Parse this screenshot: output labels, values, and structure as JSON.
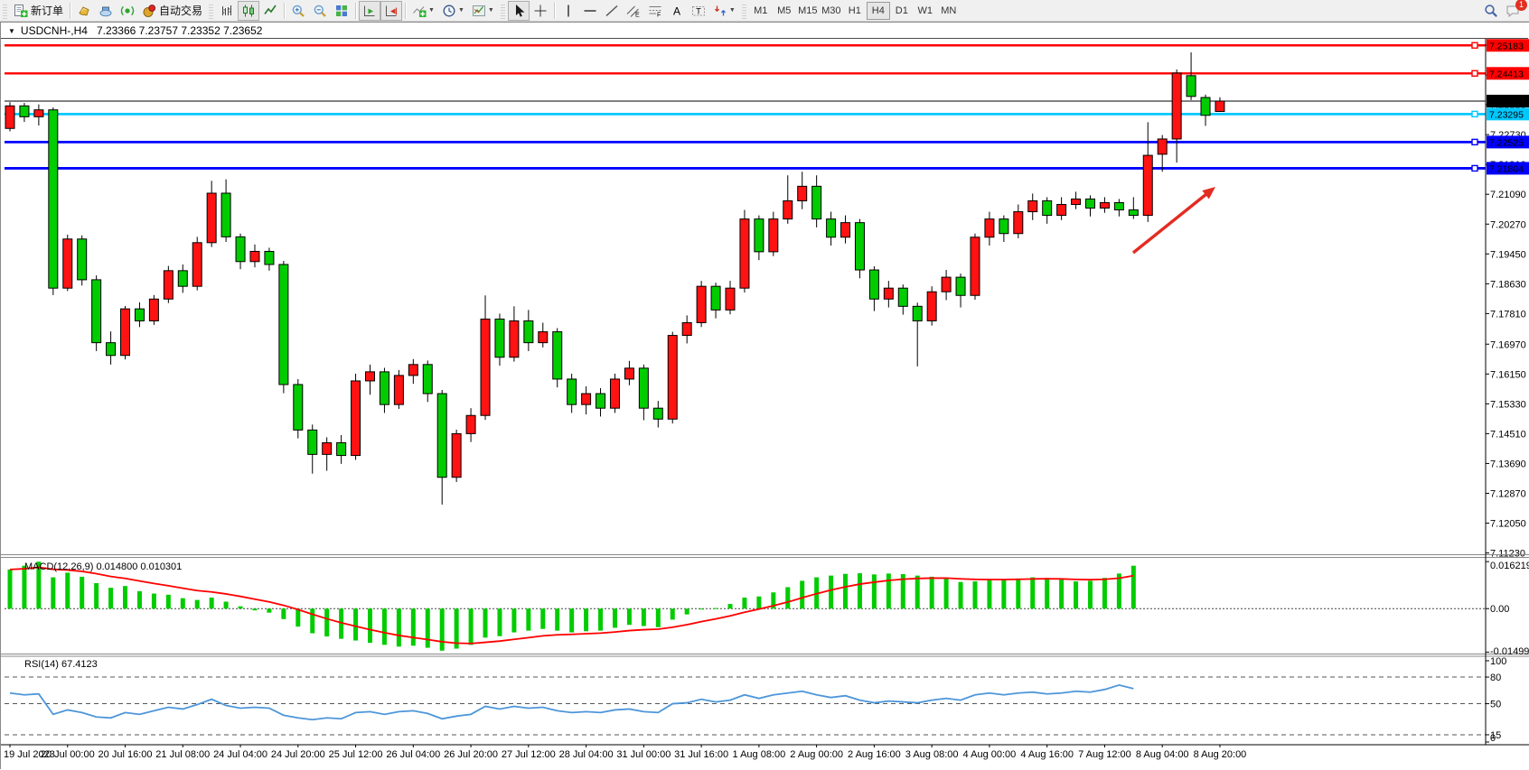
{
  "toolbar": {
    "new_order_label": "新订单",
    "autotrading_label": "自动交易",
    "notification_count": "1",
    "timeframes": [
      "M1",
      "M5",
      "M15",
      "M30",
      "H1",
      "H4",
      "D1",
      "W1",
      "MN"
    ],
    "active_timeframe": "H4",
    "items": [
      {
        "t": "grip"
      },
      {
        "t": "btn",
        "name": "new-order",
        "icon": "new-order",
        "label_key": "new_order_label"
      },
      {
        "t": "sep"
      },
      {
        "t": "btn",
        "name": "market",
        "icon": "market"
      },
      {
        "t": "btn",
        "name": "virtual-hosting",
        "icon": "hosting"
      },
      {
        "t": "btn",
        "name": "signals",
        "icon": "signals"
      },
      {
        "t": "btn",
        "name": "autotrading",
        "icon": "autotrading",
        "label_key": "autotrading_label"
      },
      {
        "t": "grip"
      },
      {
        "t": "btn",
        "name": "bar-chart",
        "icon": "bar-chart"
      },
      {
        "t": "btn",
        "name": "candlestick-chart",
        "icon": "candlestick",
        "active": true
      },
      {
        "t": "btn",
        "name": "line-chart",
        "icon": "line-chart"
      },
      {
        "t": "sep"
      },
      {
        "t": "btn",
        "name": "zoom-in",
        "icon": "zoom-in"
      },
      {
        "t": "btn",
        "name": "zoom-out",
        "icon": "zoom-out"
      },
      {
        "t": "btn",
        "name": "tile-windows",
        "icon": "tile"
      },
      {
        "t": "sep"
      },
      {
        "t": "btn",
        "name": "auto-scroll",
        "icon": "auto-scroll",
        "active": true
      },
      {
        "t": "btn",
        "name": "chart-shift",
        "icon": "chart-shift",
        "active": true
      },
      {
        "t": "sep"
      },
      {
        "t": "btn",
        "name": "indicators",
        "icon": "indicators",
        "dd": true
      },
      {
        "t": "btn",
        "name": "periods",
        "icon": "periods",
        "dd": true
      },
      {
        "t": "btn",
        "name": "templates",
        "icon": "templates",
        "dd": true
      },
      {
        "t": "grip"
      },
      {
        "t": "btn",
        "name": "cursor",
        "icon": "cursor",
        "active": true
      },
      {
        "t": "btn",
        "name": "crosshair",
        "icon": "crosshair"
      },
      {
        "t": "sep"
      },
      {
        "t": "btn",
        "name": "vertical-line",
        "icon": "vline"
      },
      {
        "t": "btn",
        "name": "horizontal-line",
        "icon": "hline"
      },
      {
        "t": "btn",
        "name": "trendline",
        "icon": "tline"
      },
      {
        "t": "btn",
        "name": "equidistant-channel",
        "icon": "channel"
      },
      {
        "t": "btn",
        "name": "fibonacci",
        "icon": "fibo"
      },
      {
        "t": "btn",
        "name": "text",
        "icon": "text-a"
      },
      {
        "t": "btn",
        "name": "text-label",
        "icon": "text-label"
      },
      {
        "t": "btn",
        "name": "arrows",
        "icon": "arrows-tool",
        "dd": true
      },
      {
        "t": "grip"
      }
    ]
  },
  "window": {
    "collapse_arrow": "▼",
    "title_symbol": "USDCNH-,H4",
    "title_ohlc": "7.23366 7.23757 7.23352 7.23652"
  },
  "chart_data": [
    {
      "type": "candlestick",
      "symbol": "USDCNH",
      "timeframe": "H4",
      "up_color": "#fe1212",
      "down_color": "#00cc00",
      "price_range": [
        7.1117,
        7.2576
      ],
      "y_ticks": [
        "7.25190",
        "7.24370",
        "7.23550",
        "7.22730",
        "7.21910",
        "7.21090",
        "7.20270",
        "7.19450",
        "7.18630",
        "7.17810",
        "7.16970",
        "7.16150",
        "7.15330",
        "7.14510",
        "7.13690",
        "7.12870",
        "7.12050",
        "7.11230"
      ],
      "x_labels": [
        "19 Jul 2023",
        "20 Jul 00:00",
        "20 Jul 16:00",
        "21 Jul 08:00",
        "24 Jul 04:00",
        "24 Jul 20:00",
        "25 Jul 12:00",
        "26 Jul 04:00",
        "26 Jul 20:00",
        "27 Jul 12:00",
        "28 Jul 04:00",
        "31 Jul 00:00",
        "31 Jul 16:00",
        "1 Aug 08:00",
        "2 Aug 00:00",
        "2 Aug 16:00",
        "3 Aug 08:00",
        "4 Aug 00:00",
        "4 Aug 16:00",
        "7 Aug 12:00",
        "8 Aug 04:00",
        "8 Aug 20:00"
      ],
      "candles_per_label": 4,
      "open": [
        7.229,
        7.2352,
        7.2322,
        7.2341,
        7.1851,
        7.1986,
        7.1874,
        7.1701,
        7.1666,
        7.1794,
        7.1761,
        7.1821,
        7.1899,
        7.1856,
        7.1976,
        7.2112,
        7.1992,
        7.1924,
        7.1952,
        7.1916,
        7.1586,
        7.1461,
        7.1394,
        7.1426,
        7.1391,
        7.1596,
        7.1621,
        7.1531,
        7.1611,
        7.1641,
        7.1561,
        7.1331,
        7.1451,
        7.1501,
        7.1766,
        7.1661,
        7.1761,
        7.1701,
        7.1731,
        7.1601,
        7.1531,
        7.1561,
        7.1521,
        7.1601,
        7.1631,
        7.1521,
        7.1491,
        7.1721,
        7.1756,
        7.1856,
        7.1791,
        7.1851,
        7.2041,
        7.1951,
        7.2041,
        7.2091,
        7.2131,
        7.2041,
        7.1991,
        7.2031,
        7.1901,
        7.1821,
        7.1851,
        7.1801,
        7.1761,
        7.1841,
        7.1881,
        7.1831,
        7.1991,
        7.2041,
        7.2001,
        7.2061,
        7.2091,
        7.2051,
        7.2081,
        7.2096,
        7.2071,
        7.2086,
        7.2066,
        7.2051,
        7.2219,
        7.2261,
        7.2435,
        7.2375,
        7.23366
      ],
      "high": [
        7.2362,
        7.236,
        7.2356,
        7.2348,
        7.1998,
        7.1996,
        7.1886,
        7.1732,
        7.1802,
        7.1812,
        7.1832,
        7.1912,
        7.1916,
        7.1992,
        7.2146,
        7.215,
        7.2001,
        7.1971,
        7.1962,
        7.1926,
        7.1601,
        7.1476,
        7.1441,
        7.1447,
        7.1616,
        7.1641,
        7.1632,
        7.1626,
        7.1656,
        7.1652,
        7.1571,
        7.1462,
        7.1521,
        7.1831,
        7.1781,
        7.1801,
        7.1791,
        7.1756,
        7.1741,
        7.1616,
        7.1581,
        7.1576,
        7.1616,
        7.1651,
        7.1641,
        7.1541,
        7.1731,
        7.1776,
        7.1871,
        7.1866,
        7.1871,
        7.2066,
        7.2051,
        7.2061,
        7.2161,
        7.2171,
        7.2161,
        7.2061,
        7.2051,
        7.2041,
        7.1911,
        7.1871,
        7.1861,
        7.1811,
        7.1856,
        7.1901,
        7.1891,
        7.2001,
        7.2061,
        7.2051,
        7.2081,
        7.2111,
        7.2101,
        7.2101,
        7.2116,
        7.2106,
        7.2101,
        7.2096,
        7.2101,
        7.2307,
        7.2272,
        7.2452,
        7.2499,
        7.2383,
        7.23757
      ],
      "low": [
        7.2282,
        7.2308,
        7.2298,
        7.1832,
        7.1843,
        7.1858,
        7.1678,
        7.1641,
        7.1655,
        7.1744,
        7.175,
        7.181,
        7.1838,
        7.1845,
        7.1964,
        7.1978,
        7.1903,
        7.1908,
        7.1899,
        7.1562,
        7.1438,
        7.1341,
        7.1349,
        7.1368,
        7.1379,
        7.1558,
        7.1508,
        7.1519,
        7.1588,
        7.1538,
        7.1256,
        7.1318,
        7.1428,
        7.1489,
        7.1638,
        7.1649,
        7.1678,
        7.1688,
        7.1578,
        7.1508,
        7.1504,
        7.1498,
        7.1508,
        7.1584,
        7.1488,
        7.1468,
        7.1479,
        7.1699,
        7.1744,
        7.1768,
        7.1779,
        7.1839,
        7.1928,
        7.1939,
        7.2028,
        7.2068,
        7.2018,
        7.1968,
        7.1974,
        7.1878,
        7.1788,
        7.1798,
        7.1778,
        7.1636,
        7.1748,
        7.1818,
        7.1798,
        7.1819,
        7.1968,
        7.1978,
        7.1988,
        7.2038,
        7.2028,
        7.2038,
        7.2068,
        7.2048,
        7.2058,
        7.2048,
        7.2041,
        7.2033,
        7.2171,
        7.2196,
        7.2368,
        7.2297,
        7.23352
      ],
      "close": [
        7.2352,
        7.2322,
        7.2341,
        7.1851,
        7.1986,
        7.1874,
        7.1701,
        7.1666,
        7.1794,
        7.1761,
        7.1821,
        7.1899,
        7.1856,
        7.1976,
        7.2112,
        7.1992,
        7.1924,
        7.1952,
        7.1916,
        7.1586,
        7.1461,
        7.1394,
        7.1426,
        7.1391,
        7.1596,
        7.1621,
        7.1531,
        7.1611,
        7.1641,
        7.1561,
        7.1331,
        7.1451,
        7.1501,
        7.1766,
        7.1661,
        7.1761,
        7.1701,
        7.1731,
        7.1601,
        7.1531,
        7.1561,
        7.1521,
        7.1601,
        7.1631,
        7.1521,
        7.1491,
        7.1721,
        7.1756,
        7.1856,
        7.1791,
        7.1851,
        7.2041,
        7.1951,
        7.2041,
        7.2091,
        7.2131,
        7.2041,
        7.1991,
        7.2031,
        7.1901,
        7.1821,
        7.1851,
        7.1801,
        7.1761,
        7.1841,
        7.1881,
        7.1831,
        7.1991,
        7.2041,
        7.2001,
        7.2061,
        7.2091,
        7.2051,
        7.2081,
        7.2096,
        7.2071,
        7.2086,
        7.2066,
        7.2051,
        7.2216,
        7.2261,
        7.2442,
        7.2378,
        7.2326,
        7.23652
      ],
      "levels": [
        {
          "price": 7.25183,
          "label": "7.25183",
          "color": "#ff0000",
          "width": 2.4
        },
        {
          "price": 7.24413,
          "label": "7.24413",
          "color": "#ff0000",
          "width": 2.4
        },
        {
          "price": 7.23295,
          "label": "7.23295",
          "color": "#00c8ff",
          "width": 2.8
        },
        {
          "price": 7.22525,
          "label": "7.22525",
          "color": "#0000ff",
          "width": 2.8
        },
        {
          "price": 7.21804,
          "label": "7.21804",
          "color": "#0000ff",
          "width": 2.8
        }
      ],
      "current_price": {
        "price": 7.23652,
        "label": "7.23652",
        "color": "#000000"
      },
      "annotation_arrow": {
        "from": [
          1253,
          279
        ],
        "to": [
          1344,
          206
        ],
        "color": "#e32c22"
      },
      "shift_marker_x": 1277
    },
    {
      "type": "bar",
      "name": "MACD",
      "params": "(12,26,9)",
      "label": "MACD(12,26,9) 0.014800 0.010301",
      "main_value": "0.014800",
      "signal_value": "0.010301",
      "bar_color": "#00cc00",
      "signal_color": "#ff0000",
      "range": [
        -0.0155,
        0.0172
      ],
      "y_ticks": [
        {
          "v": 0.016219,
          "label": "0.016219"
        },
        {
          "v": 0,
          "label": "0.00"
        },
        {
          "v": -0.014998,
          "label": "-0.014998"
        }
      ],
      "values": [
        0.0135,
        0.0148,
        0.0162,
        0.0108,
        0.0124,
        0.011,
        0.0088,
        0.0072,
        0.0078,
        0.006,
        0.0052,
        0.0048,
        0.0036,
        0.003,
        0.0038,
        0.0024,
        0.0008,
        -0.0006,
        -0.0014,
        -0.0036,
        -0.0062,
        -0.0085,
        -0.0096,
        -0.0104,
        -0.011,
        -0.0118,
        -0.0125,
        -0.0131,
        -0.0128,
        -0.0135,
        -0.0145,
        -0.0138,
        -0.0125,
        -0.01,
        -0.0095,
        -0.0082,
        -0.0076,
        -0.007,
        -0.0076,
        -0.0082,
        -0.0078,
        -0.0076,
        -0.0066,
        -0.0056,
        -0.006,
        -0.0064,
        -0.0038,
        -0.002,
        -0.0002,
        0.0002,
        0.0016,
        0.0038,
        0.0042,
        0.0056,
        0.0074,
        0.0096,
        0.0108,
        0.0114,
        0.012,
        0.0122,
        0.0118,
        0.0121,
        0.0119,
        0.0114,
        0.011,
        0.0106,
        0.0092,
        0.0094,
        0.0098,
        0.01,
        0.0104,
        0.0108,
        0.0106,
        0.01,
        0.0094,
        0.0096,
        0.0106,
        0.0121,
        0.0148
      ],
      "signal_period": 9
    },
    {
      "type": "line",
      "name": "RSI",
      "params": "(14)",
      "label": "RSI(14) 67.4123",
      "value": "67.4123",
      "line_color": "#4d96d9",
      "range": [
        0,
        100
      ],
      "y_ticks": [
        {
          "v": 100,
          "label": "100"
        },
        {
          "v": 80,
          "label": "80"
        },
        {
          "v": 50,
          "label": "50"
        },
        {
          "v": 15,
          "label": "15"
        },
        {
          "v": 0,
          "label": "0"
        }
      ],
      "dashed_levels": [
        80,
        50,
        15
      ],
      "values": [
        62,
        60,
        61,
        38,
        43,
        40,
        35,
        34,
        40,
        38,
        42,
        46,
        44,
        49,
        55,
        48,
        45,
        46,
        45,
        37,
        34,
        32,
        34,
        33,
        40,
        41,
        38,
        41,
        42,
        39,
        33,
        36,
        38,
        47,
        44,
        47,
        45,
        46,
        42,
        40,
        41,
        40,
        43,
        44,
        41,
        40,
        50,
        51,
        55,
        52,
        54,
        60,
        56,
        60,
        62,
        64,
        60,
        57,
        59,
        54,
        51,
        53,
        52,
        51,
        54,
        56,
        54,
        60,
        62,
        60,
        62,
        63,
        61,
        62,
        64,
        63,
        66,
        71,
        67
      ]
    }
  ]
}
